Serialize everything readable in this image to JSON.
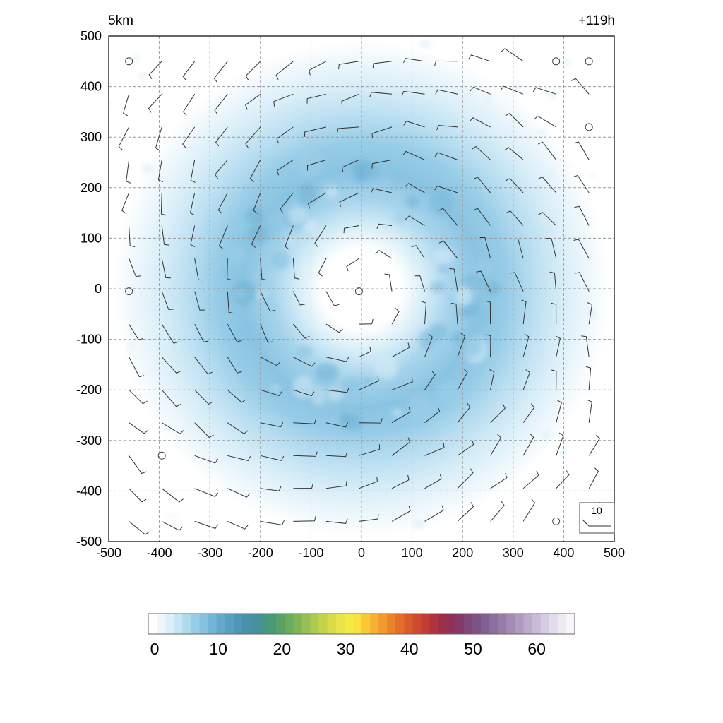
{
  "chart_data": {
    "type": "heatmap",
    "title_left": "5km",
    "title_right": "+119h",
    "x_ticks": [
      "-500",
      "-400",
      "-300",
      "-200",
      "-100",
      "0",
      "100",
      "200",
      "300",
      "400",
      "500"
    ],
    "y_ticks": [
      "500",
      "400",
      "300",
      "200",
      "100",
      "0",
      "-100",
      "-200",
      "-300",
      "-400",
      "-500"
    ],
    "xlim": [
      -500,
      500
    ],
    "ylim": [
      -500,
      500
    ],
    "grid": true,
    "field": {
      "shape": "annulus",
      "center": [
        0,
        0
      ],
      "peak_radius": 210,
      "peak_value": 11,
      "eye_value": 0,
      "outer_edge_radius": 440
    },
    "wind_barbs": {
      "rotation": "cyclonic",
      "reference_label": "10",
      "calm_points": [
        [
          -460,
          450
        ],
        [
          385,
          450
        ],
        [
          450,
          450
        ],
        [
          450,
          320
        ],
        [
          -460,
          -5
        ],
        [
          -5,
          -5
        ],
        [
          -395,
          -330
        ],
        [
          385,
          -460
        ]
      ]
    },
    "colorbar": {
      "ticks": [
        "0",
        "10",
        "20",
        "30",
        "40",
        "50",
        "60"
      ],
      "min": 0,
      "max": 66,
      "colors": [
        "#ffffff",
        "#eef7fc",
        "#dcf0f9",
        "#c6e6f4",
        "#afdaee",
        "#98cde8",
        "#86c1e0",
        "#75b4d6",
        "#66a8cc",
        "#5a9ec2",
        "#4f95b8",
        "#4a90ac",
        "#46919c",
        "#45958a",
        "#4b9a77",
        "#58a266",
        "#6aab5d",
        "#80b556",
        "#97c051",
        "#aeca4e",
        "#c3d34c",
        "#d7dc4a",
        "#e9e447",
        "#f7ea45",
        "#fbe03f",
        "#f9c838",
        "#f6b032",
        "#f29a2d",
        "#ec8329",
        "#e46e28",
        "#db5a2a",
        "#cf4a2e",
        "#c13d35",
        "#b0333f",
        "#9e2f4b",
        "#8f3259",
        "#853b69",
        "#7f4677",
        "#7d5285",
        "#825f92",
        "#8b6d9e",
        "#967ca9",
        "#a28bb4",
        "#af9bbf",
        "#bcabca",
        "#c9bbd5",
        "#d6cbe0",
        "#e3dbea",
        "#efe9f3",
        "#f8f4f9"
      ]
    }
  }
}
